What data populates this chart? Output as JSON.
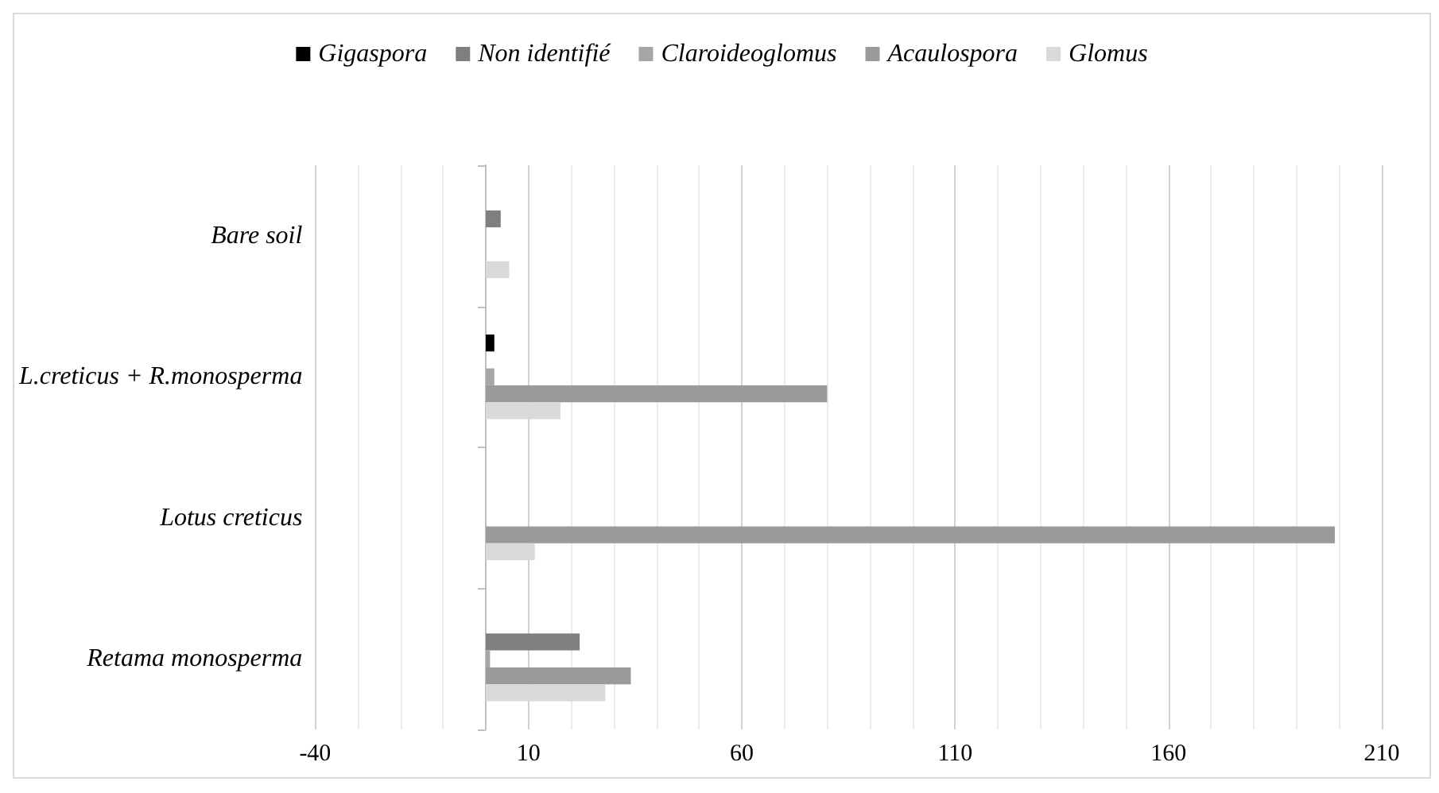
{
  "chart_data": {
    "type": "bar",
    "orientation": "horizontal",
    "categories": [
      "Bare soil",
      "L.creticus + R.monosperma",
      "Lotus creticus",
      "Retama monosperma"
    ],
    "series": [
      {
        "name": "Gigaspora",
        "color": "#000000",
        "values": [
          null,
          2,
          null,
          null
        ]
      },
      {
        "name": "Non identifié",
        "color": "#7f7f7f",
        "values": [
          3.5,
          null,
          null,
          22
        ]
      },
      {
        "name": "Claroideoglomus",
        "color": "#a6a6a6",
        "values": [
          null,
          2,
          null,
          1
        ]
      },
      {
        "name": "Acaulospora",
        "color": "#9a9a9a",
        "values": [
          null,
          80,
          199,
          34
        ]
      },
      {
        "name": "Glomus",
        "color": "#d9d9d9",
        "values": [
          5.5,
          17.5,
          11.5,
          28
        ]
      }
    ],
    "xlim": [
      -40,
      210
    ],
    "xticks": [
      -40,
      10,
      60,
      110,
      160,
      210
    ],
    "grid": "x",
    "legend": "top"
  }
}
